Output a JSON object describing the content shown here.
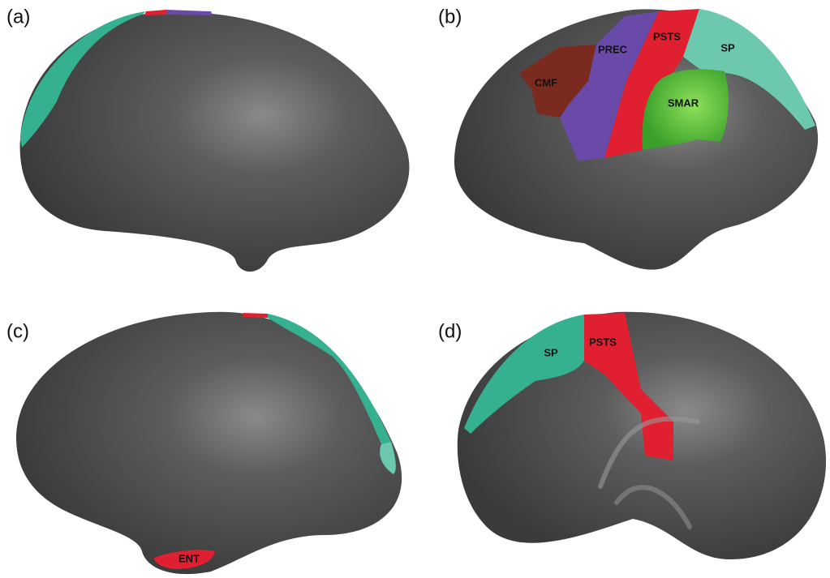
{
  "panels": [
    {
      "label": "(a)",
      "regions": []
    },
    {
      "label": "(b)",
      "regions": [
        "CMF",
        "PREC",
        "PSTS",
        "SP",
        "SMAR"
      ]
    },
    {
      "label": "(c)",
      "regions": [
        "ENT"
      ]
    },
    {
      "label": "(d)",
      "regions": [
        "SP",
        "PSTS"
      ]
    }
  ]
}
